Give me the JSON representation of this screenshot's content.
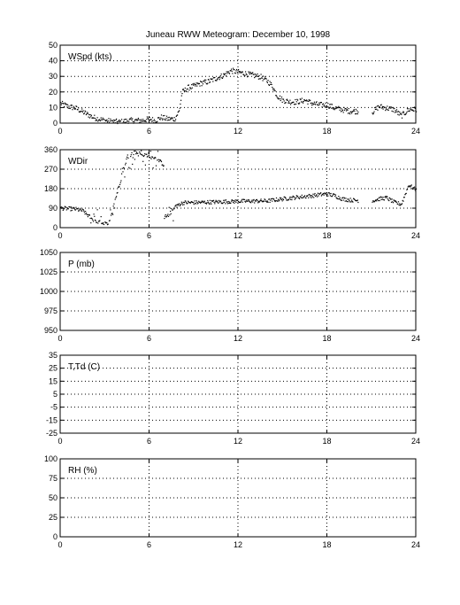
{
  "figure": {
    "title": "Juneau RWW Meteogram:  December 10, 1998"
  },
  "chart_data": [
    {
      "type": "scatter",
      "panel_label": "WSpd (kts)",
      "xlim": [
        0,
        24
      ],
      "ylim": [
        0,
        50
      ],
      "xticks": [
        0,
        6,
        12,
        18,
        24
      ],
      "yticks": [
        0,
        10,
        20,
        30,
        40,
        50
      ],
      "grid": true,
      "marker_color": "#000000",
      "keypoints": [
        [
          0.0,
          13
        ],
        [
          0.5,
          11
        ],
        [
          1.0,
          10
        ],
        [
          1.4,
          8
        ],
        [
          1.8,
          6
        ],
        [
          2.2,
          4
        ],
        [
          2.6,
          3
        ],
        [
          3.0,
          2
        ],
        [
          3.4,
          1.5
        ],
        [
          4.0,
          1
        ],
        [
          4.6,
          2
        ],
        [
          5.0,
          2
        ],
        [
          5.5,
          2
        ],
        [
          6.0,
          3
        ],
        [
          6.4,
          2
        ],
        [
          6.8,
          4
        ],
        [
          7.2,
          3
        ],
        [
          7.7,
          3
        ],
        [
          8.0,
          8
        ],
        [
          8.2,
          20
        ],
        [
          8.6,
          23
        ],
        [
          9.0,
          24
        ],
        [
          9.5,
          26
        ],
        [
          10.0,
          27
        ],
        [
          10.5,
          29
        ],
        [
          11.0,
          31
        ],
        [
          11.5,
          34
        ],
        [
          12.0,
          33
        ],
        [
          12.5,
          32
        ],
        [
          13.0,
          31
        ],
        [
          13.5,
          30
        ],
        [
          14.0,
          27
        ],
        [
          14.3,
          24
        ],
        [
          14.6,
          18
        ],
        [
          15.0,
          15
        ],
        [
          15.5,
          14
        ],
        [
          16.0,
          14
        ],
        [
          16.5,
          15
        ],
        [
          17.0,
          13
        ],
        [
          17.5,
          12
        ],
        [
          18.0,
          12
        ],
        [
          18.5,
          10
        ],
        [
          19.0,
          9
        ],
        [
          19.5,
          8
        ],
        [
          20.0,
          8
        ],
        [
          21.0,
          7
        ],
        [
          21.5,
          11
        ],
        [
          22.0,
          10
        ],
        [
          22.5,
          9
        ],
        [
          23.0,
          5
        ],
        [
          23.5,
          9
        ],
        [
          24.0,
          9
        ]
      ],
      "gaps": [
        [
          20.1,
          21.0
        ]
      ]
    },
    {
      "type": "scatter",
      "panel_label": "WDir",
      "xlim": [
        0,
        24
      ],
      "ylim": [
        0,
        360
      ],
      "xticks": [
        0,
        6,
        12,
        18,
        24
      ],
      "yticks": [
        0,
        90,
        180,
        270,
        360
      ],
      "grid": true,
      "marker_color": "#000000",
      "keypoints": [
        [
          0.0,
          92
        ],
        [
          0.5,
          90
        ],
        [
          1.0,
          88
        ],
        [
          1.5,
          80
        ],
        [
          2.0,
          50
        ],
        [
          2.3,
          30
        ],
        [
          2.8,
          25
        ],
        [
          3.2,
          15
        ],
        [
          4.5,
          330
        ],
        [
          5.0,
          350
        ],
        [
          5.6,
          340
        ],
        [
          6.0,
          330
        ],
        [
          6.5,
          320
        ],
        [
          7.0,
          290
        ],
        [
          6.2,
          60
        ],
        [
          6.6,
          40
        ],
        [
          7.3,
          60
        ],
        [
          7.7,
          100
        ],
        [
          8.0,
          110
        ],
        [
          8.3,
          118
        ],
        [
          9.0,
          118
        ],
        [
          10.0,
          120
        ],
        [
          11.0,
          122
        ],
        [
          12.0,
          124
        ],
        [
          13.0,
          125
        ],
        [
          14.0,
          126
        ],
        [
          15.0,
          135
        ],
        [
          16.0,
          143
        ],
        [
          17.0,
          150
        ],
        [
          17.5,
          155
        ],
        [
          18.0,
          158
        ],
        [
          18.5,
          150
        ],
        [
          19.0,
          135
        ],
        [
          19.5,
          130
        ],
        [
          20.0,
          128
        ],
        [
          21.0,
          125
        ],
        [
          21.5,
          135
        ],
        [
          22.0,
          140
        ],
        [
          22.5,
          120
        ],
        [
          23.0,
          110
        ],
        [
          23.5,
          200
        ],
        [
          24.0,
          175
        ]
      ],
      "gaps": [
        [
          20.1,
          21.0
        ]
      ]
    },
    {
      "type": "scatter",
      "panel_label": "P (mb)",
      "xlim": [
        0,
        24
      ],
      "ylim": [
        950,
        1050
      ],
      "xticks": [
        0,
        6,
        12,
        18,
        24
      ],
      "yticks": [
        950,
        975,
        1000,
        1025,
        1050
      ],
      "grid": true
    },
    {
      "type": "scatter",
      "panel_label": "T,Td (C)",
      "xlim": [
        0,
        24
      ],
      "ylim": [
        -25,
        35
      ],
      "xticks": [
        0,
        6,
        12,
        18,
        24
      ],
      "yticks": [
        -25,
        -15,
        -5,
        5,
        15,
        25,
        35
      ],
      "grid": true
    },
    {
      "type": "scatter",
      "panel_label": "RH (%)",
      "xlim": [
        0,
        24
      ],
      "ylim": [
        0,
        100
      ],
      "xticks": [
        0,
        6,
        12,
        18,
        24
      ],
      "yticks": [
        0,
        25,
        50,
        75,
        100
      ],
      "grid": true
    }
  ]
}
